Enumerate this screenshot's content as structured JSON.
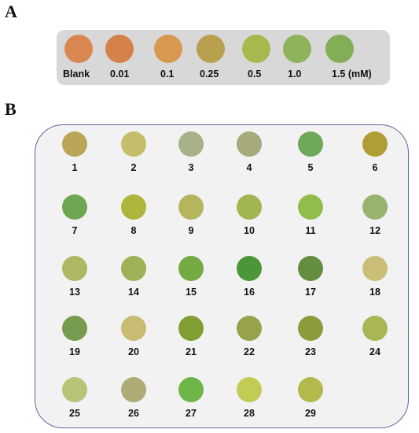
{
  "panel_a": {
    "letter": "A",
    "standards": [
      {
        "label": "Blank",
        "color": "#d98650"
      },
      {
        "label": "0.01",
        "color": "#d5824a"
      },
      {
        "label": "0.1",
        "color": "#d9984f"
      },
      {
        "label": "0.25",
        "color": "#b9a04e"
      },
      {
        "label": "0.5",
        "color": "#a8b84c"
      },
      {
        "label": "1.0",
        "color": "#8eb35a"
      },
      {
        "label": "1.5 (mM)",
        "color": "#84ad58"
      }
    ]
  },
  "panel_b": {
    "letter": "B",
    "samples": [
      {
        "label": "1",
        "color": "#b8a557"
      },
      {
        "label": "2",
        "color": "#c5bd69"
      },
      {
        "label": "3",
        "color": "#a7b189"
      },
      {
        "label": "4",
        "color": "#a7ab7b"
      },
      {
        "label": "5",
        "color": "#6ca857"
      },
      {
        "label": "6",
        "color": "#b09d34"
      },
      {
        "label": "7",
        "color": "#6ea652"
      },
      {
        "label": "8",
        "color": "#aeb43c"
      },
      {
        "label": "9",
        "color": "#b5b55d"
      },
      {
        "label": "10",
        "color": "#a2b553"
      },
      {
        "label": "11",
        "color": "#90bd4c"
      },
      {
        "label": "12",
        "color": "#98b270"
      },
      {
        "label": "13",
        "color": "#aeb863"
      },
      {
        "label": "14",
        "color": "#9fb156"
      },
      {
        "label": "15",
        "color": "#73aa41"
      },
      {
        "label": "16",
        "color": "#4c9638"
      },
      {
        "label": "17",
        "color": "#658d3f"
      },
      {
        "label": "18",
        "color": "#cbbf77"
      },
      {
        "label": "19",
        "color": "#759b4f"
      },
      {
        "label": "20",
        "color": "#c9bb72"
      },
      {
        "label": "21",
        "color": "#809e32"
      },
      {
        "label": "22",
        "color": "#97a24a"
      },
      {
        "label": "23",
        "color": "#8b9c3f"
      },
      {
        "label": "24",
        "color": "#aab653"
      },
      {
        "label": "25",
        "color": "#b9c378"
      },
      {
        "label": "26",
        "color": "#aeab76"
      },
      {
        "label": "27",
        "color": "#6fb547"
      },
      {
        "label": "28",
        "color": "#c2cc55"
      },
      {
        "label": "29",
        "color": "#b3b94a"
      }
    ]
  }
}
